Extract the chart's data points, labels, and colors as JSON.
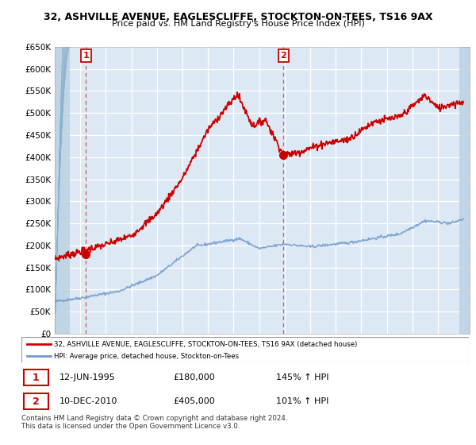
{
  "title": "32, ASHVILLE AVENUE, EAGLESCLIFFE, STOCKTON-ON-TEES, TS16 9AX",
  "subtitle": "Price paid vs. HM Land Registry's House Price Index (HPI)",
  "ylim": [
    0,
    650000
  ],
  "yticks": [
    0,
    50000,
    100000,
    150000,
    200000,
    250000,
    300000,
    350000,
    400000,
    450000,
    500000,
    550000,
    600000,
    650000
  ],
  "ytick_labels": [
    "£0",
    "£50K",
    "£100K",
    "£150K",
    "£200K",
    "£250K",
    "£300K",
    "£350K",
    "£400K",
    "£450K",
    "£500K",
    "£550K",
    "£600K",
    "£650K"
  ],
  "hpi_color": "#7099cc",
  "price_color": "#cc0000",
  "point1_date": 1995.45,
  "point1_price": 180000,
  "point2_date": 2010.92,
  "point2_price": 405000,
  "legend_label1": "32, ASHVILLE AVENUE, EAGLESCLIFFE, STOCKTON-ON-TEES, TS16 9AX (detached house)",
  "legend_label2": "HPI: Average price, detached house, Stockton-on-Tees",
  "table_row1": [
    "1",
    "12-JUN-1995",
    "£180,000",
    "145% ↑ HPI"
  ],
  "table_row2": [
    "2",
    "10-DEC-2010",
    "£405,000",
    "101% ↑ HPI"
  ],
  "footer": "Contains HM Land Registry data © Crown copyright and database right 2024.\nThis data is licensed under the Open Government Licence v3.0.",
  "bg_plot_color": "#dce9f5",
  "grid_color": "#ffffff",
  "hatch_left_color": "#c8d8e8"
}
